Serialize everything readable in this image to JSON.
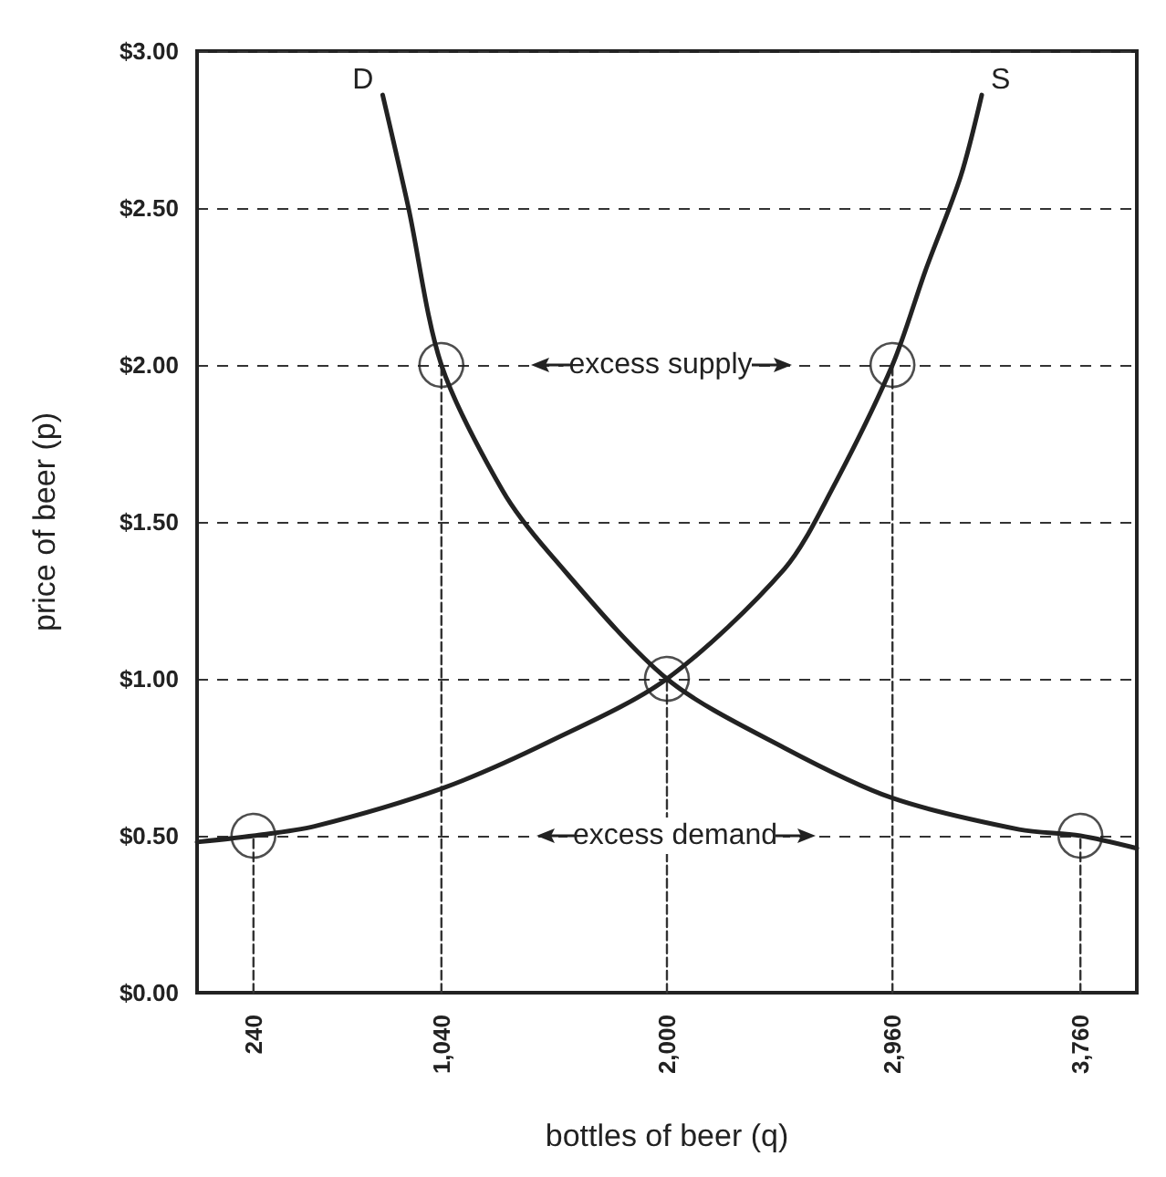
{
  "chart_data": {
    "type": "line",
    "xlabel": "bottles of beer (q)",
    "ylabel": "price of beer (p)",
    "xlim": [
      0,
      4000
    ],
    "ylim": [
      0,
      3
    ],
    "xticks": [
      {
        "value": 240,
        "label": "240"
      },
      {
        "value": 1040,
        "label": "1,040"
      },
      {
        "value": 2000,
        "label": "2,000"
      },
      {
        "value": 2960,
        "label": "2,960"
      },
      {
        "value": 3760,
        "label": "3,760"
      }
    ],
    "yticks": [
      {
        "value": 0,
        "label": "$0.00"
      },
      {
        "value": 0.5,
        "label": "$0.50"
      },
      {
        "value": 1,
        "label": "$1.00"
      },
      {
        "value": 1.5,
        "label": "$1.50"
      },
      {
        "value": 2,
        "label": "$2.00"
      },
      {
        "value": 2.5,
        "label": "$2.50"
      },
      {
        "value": 3,
        "label": "$3.00"
      }
    ],
    "grid": "y",
    "legend": false,
    "series": [
      {
        "name": "D",
        "color": "#222222",
        "x": [
          790,
          900,
          1040,
          1300,
          1500,
          2000,
          2500,
          2960,
          3500,
          3760,
          4000
        ],
        "values": [
          2.86,
          2.5,
          2,
          1.6,
          1.4,
          1,
          0.78,
          0.62,
          0.52,
          0.5,
          0.46
        ]
      },
      {
        "name": "S",
        "color": "#222222",
        "x": [
          0,
          240,
          500,
          1040,
          1500,
          2000,
          2500,
          2700,
          2960,
          3100,
          3250,
          3340
        ],
        "values": [
          0.48,
          0.5,
          0.53,
          0.65,
          0.8,
          1,
          1.35,
          1.6,
          2,
          2.3,
          2.6,
          2.86
        ]
      },
      {
        "type": "scatter",
        "marker": "circle",
        "color": "#222222",
        "x": [
          240,
          1040,
          2000,
          2960,
          3760
        ],
        "values": [
          0.5,
          2,
          1,
          2,
          0.5
        ]
      },
      {
        "color": "#333333",
        "line_style": "dashed",
        "marker": "none",
        "x": [
          240,
          240
        ],
        "values": [
          0,
          0.5
        ]
      },
      {
        "color": "#333333",
        "line_style": "dashed",
        "marker": "none",
        "x": [
          1040,
          1040
        ],
        "values": [
          0,
          2
        ]
      },
      {
        "color": "#333333",
        "line_style": "dashed",
        "marker": "none",
        "x": [
          2000,
          2000
        ],
        "values": [
          0,
          1
        ]
      },
      {
        "color": "#333333",
        "line_style": "dashed",
        "marker": "none",
        "x": [
          2960,
          2960
        ],
        "values": [
          0,
          2
        ]
      },
      {
        "color": "#333333",
        "line_style": "dashed",
        "marker": "none",
        "x": [
          3760,
          3760
        ],
        "values": [
          0,
          0.5
        ]
      }
    ],
    "annotations": [
      "excess supply",
      "excess demand"
    ]
  }
}
